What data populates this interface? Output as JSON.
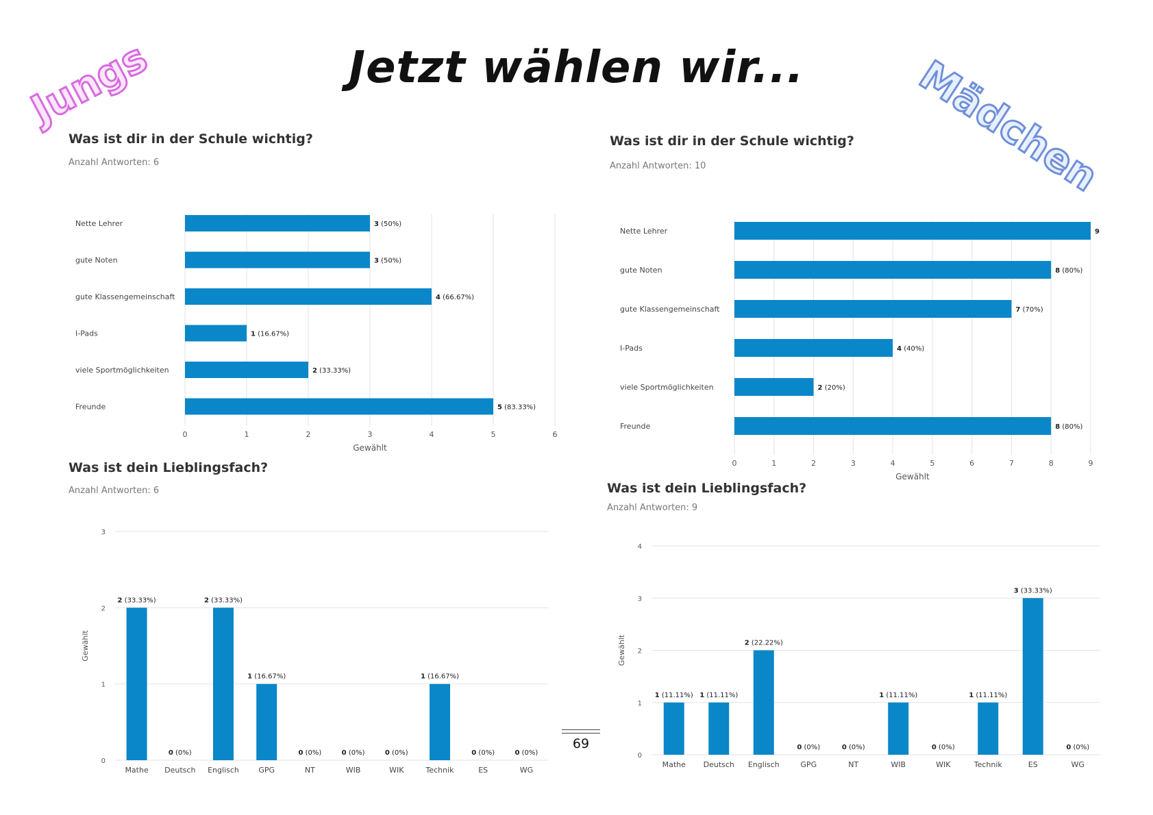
{
  "page": {
    "title": "Jetzt wählen wir...",
    "label_left": "Jungs",
    "label_right": "Mädchen",
    "page_number": "69",
    "bar_color": "#0a87c8"
  },
  "chart_data": [
    {
      "type": "bar",
      "orientation": "horizontal",
      "title": "Was ist dir in der Schule wichtig?",
      "subtitle": "Anzahl Antworten: 6",
      "categories": [
        "Nette Lehrer",
        "gute Noten",
        "gute Klassengemeinschaft",
        "I-Pads",
        "viele Sportmöglichkeiten",
        "Freunde"
      ],
      "values": [
        3,
        3,
        4,
        1,
        2,
        5
      ],
      "value_labels": [
        "3",
        "3",
        "4",
        "1",
        "2",
        "5"
      ],
      "pct_labels": [
        "(50%)",
        "(50%)",
        "(66.67%)",
        "(16.67%)",
        "(33.33%)",
        "(83.33%)"
      ],
      "xlabel": "Gewählt",
      "ylabel": "",
      "xlim": [
        0,
        6
      ],
      "ticks": [
        "0",
        "1",
        "2",
        "3",
        "4",
        "5",
        "6"
      ]
    },
    {
      "type": "bar",
      "orientation": "horizontal",
      "title": "Was ist dir in der Schule wichtig?",
      "subtitle": "Anzahl Antworten: 10",
      "categories": [
        "Nette Lehrer",
        "gute Noten",
        "gute Klassengemeinschaft",
        "I-Pads",
        "viele Sportmöglichkeiten",
        "Freunde"
      ],
      "values": [
        9,
        8,
        7,
        4,
        2,
        8
      ],
      "value_labels": [
        "9",
        "8",
        "7",
        "4",
        "2",
        "8"
      ],
      "pct_labels": [
        "",
        "(80%)",
        "(70%)",
        "(40%)",
        "(20%)",
        "(80%)"
      ],
      "xlabel": "Gewählt",
      "ylabel": "",
      "xlim": [
        0,
        9
      ],
      "ticks": [
        "0",
        "1",
        "2",
        "3",
        "4",
        "5",
        "6",
        "7",
        "8",
        "9"
      ]
    },
    {
      "type": "bar",
      "orientation": "vertical",
      "title": "Was ist dein Lieblingsfach?",
      "subtitle": "Anzahl Antworten: 6",
      "categories": [
        "Mathe",
        "Deutsch",
        "Englisch",
        "GPG",
        "NT",
        "WIB",
        "WIK",
        "Technik",
        "ES",
        "WG"
      ],
      "values": [
        2,
        0,
        2,
        1,
        0,
        0,
        0,
        1,
        0,
        0
      ],
      "value_labels": [
        "2",
        "0",
        "2",
        "1",
        "0",
        "0",
        "0",
        "1",
        "0",
        "0"
      ],
      "pct_labels": [
        "(33.33%)",
        "(0%)",
        "(33.33%)",
        "(16.67%)",
        "(0%)",
        "(0%)",
        "(0%)",
        "(16.67%)",
        "(0%)",
        "(0%)"
      ],
      "xlabel": "",
      "ylabel": "Gewählt",
      "ylim": [
        0,
        3
      ],
      "ticks": [
        "0",
        "1",
        "2",
        "3"
      ]
    },
    {
      "type": "bar",
      "orientation": "vertical",
      "title": "Was ist dein Lieblingsfach?",
      "subtitle": "Anzahl Antworten: 9",
      "categories": [
        "Mathe",
        "Deutsch",
        "Englisch",
        "GPG",
        "NT",
        "WIB",
        "WIK",
        "Technik",
        "ES",
        "WG"
      ],
      "values": [
        1,
        1,
        2,
        0,
        0,
        1,
        0,
        1,
        3,
        0
      ],
      "value_labels": [
        "1",
        "1",
        "2",
        "0",
        "0",
        "1",
        "0",
        "1",
        "3",
        "0"
      ],
      "pct_labels": [
        "(11.11%)",
        "(11.11%)",
        "(22.22%)",
        "(0%)",
        "(0%)",
        "(11.11%)",
        "(0%)",
        "(11.11%)",
        "(33.33%)",
        "(0%)"
      ],
      "xlabel": "",
      "ylabel": "Gewählt",
      "ylim": [
        0,
        4
      ],
      "ticks": [
        "0",
        "1",
        "2",
        "3",
        "4"
      ]
    }
  ]
}
